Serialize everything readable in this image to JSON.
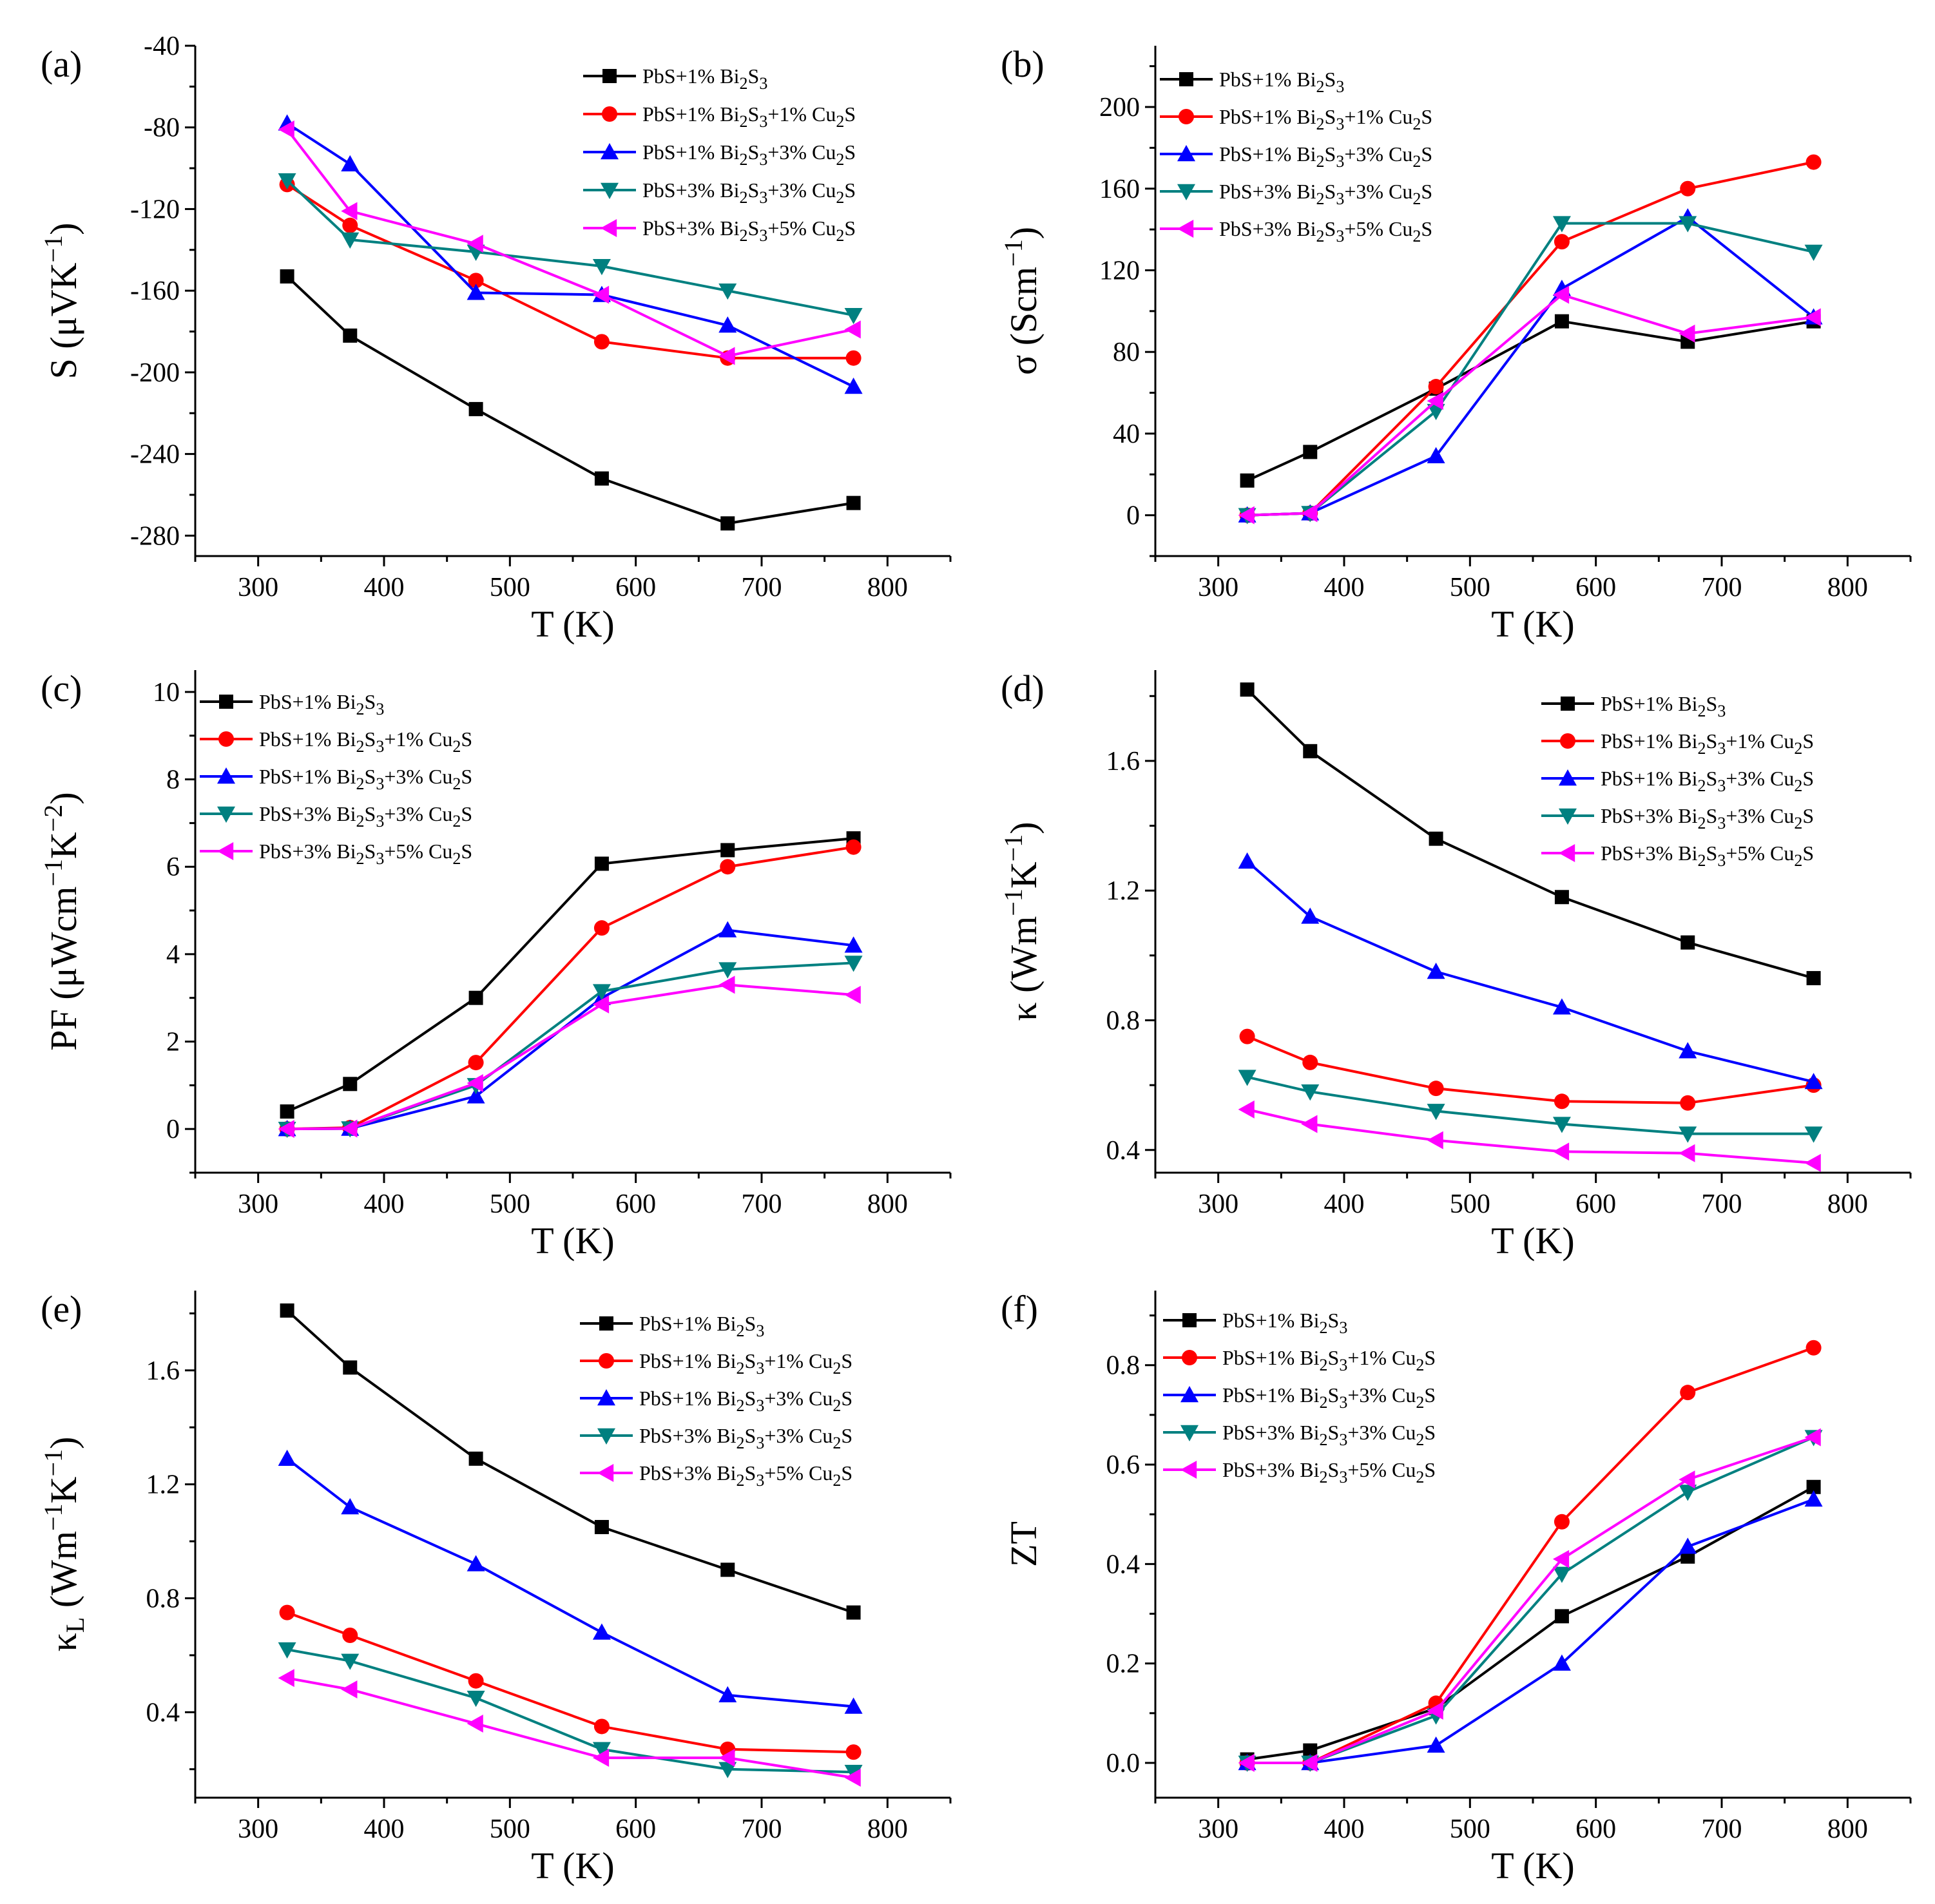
{
  "figure": {
    "description": "Six-panel thermoelectric property comparison"
  },
  "series_styles": [
    {
      "name": "PbS+1% Bi2S3",
      "label": {
        "a": "PbS+1% Bi",
        "b": "2",
        "c": "S",
        "d": "3",
        "e": "",
        "f": "",
        "g": ""
      },
      "color": "#000000",
      "marker": "square"
    },
    {
      "name": "PbS+1% Bi2S3+1% Cu2S",
      "label": {
        "a": "PbS+1% Bi",
        "b": "2",
        "c": "S",
        "d": "3",
        "e": "+1% Cu",
        "f": "2",
        "g": "S"
      },
      "color": "#ff0000",
      "marker": "circle"
    },
    {
      "name": "PbS+1% Bi2S3+3% Cu2S",
      "label": {
        "a": "PbS+1% Bi",
        "b": "2",
        "c": "S",
        "d": "3",
        "e": "+3% Cu",
        "f": "2",
        "g": "S"
      },
      "color": "#0000ff",
      "marker": "triangle-up"
    },
    {
      "name": "PbS+3% Bi2S3+3% Cu2S",
      "label": {
        "a": "PbS+3% Bi",
        "b": "2",
        "c": "S",
        "d": "3",
        "e": "+3% Cu",
        "f": "2",
        "g": "S"
      },
      "color": "#008080",
      "marker": "triangle-down"
    },
    {
      "name": "PbS+3% Bi2S3+5% Cu2S",
      "label": {
        "a": "PbS+3% Bi",
        "b": "2",
        "c": "S",
        "d": "3",
        "e": "+5% Cu",
        "f": "2",
        "g": "S"
      },
      "color": "#ff00ff",
      "marker": "triangle-left"
    }
  ],
  "chart_data": [
    {
      "id": "a",
      "panel_label": "(a)",
      "type": "line",
      "ylabel": {
        "main": "S (μVK",
        "sup": "−1",
        "end": ")"
      },
      "xlabel": "T (K)",
      "xlim": [
        250,
        850
      ],
      "xticks": [
        300,
        400,
        500,
        600,
        700,
        800
      ],
      "xtick_labels": [
        "300",
        "400",
        "500",
        "600",
        "700",
        "800"
      ],
      "ylim": [
        -290,
        -40
      ],
      "yticks": [
        -280,
        -240,
        -200,
        -160,
        -120,
        -80,
        -40
      ],
      "ytick_labels": [
        "-280",
        "-240",
        "-200",
        "-160",
        "-120",
        "-80",
        "-40"
      ],
      "legend_position": "top-right",
      "x": [
        323,
        373,
        473,
        573,
        673,
        773
      ],
      "series": [
        {
          "name": "PbS+1% Bi2S3",
          "values": [
            -153,
            -182,
            -218,
            -252,
            -274,
            -264
          ]
        },
        {
          "name": "PbS+1% Bi2S3+1% Cu2S",
          "values": [
            -108,
            -128,
            -155,
            -185,
            -193,
            -193
          ]
        },
        {
          "name": "PbS+1% Bi2S3+3% Cu2S",
          "values": [
            -78,
            -98,
            -161,
            -162,
            -177,
            -207
          ]
        },
        {
          "name": "PbS+3% Bi2S3+3% Cu2S",
          "values": [
            -106,
            -135,
            -141,
            -148,
            -160,
            -172
          ]
        },
        {
          "name": "PbS+3% Bi2S3+5% Cu2S",
          "values": [
            -81,
            -121,
            -137,
            -162,
            -192,
            -179
          ]
        }
      ]
    },
    {
      "id": "b",
      "panel_label": "(b)",
      "type": "line",
      "ylabel": {
        "main": "σ (Scm",
        "sup": "−1",
        "end": ")"
      },
      "xlabel": "T (K)",
      "xlim": [
        250,
        850
      ],
      "xticks": [
        300,
        400,
        500,
        600,
        700,
        800
      ],
      "xtick_labels": [
        "300",
        "400",
        "500",
        "600",
        "700",
        "800"
      ],
      "ylim": [
        -20,
        230
      ],
      "yticks": [
        0,
        40,
        80,
        120,
        160,
        200
      ],
      "ytick_labels": [
        "0",
        "40",
        "80",
        "120",
        "160",
        "200"
      ],
      "legend_position": "top-left",
      "x": [
        323,
        373,
        473,
        573,
        673,
        773
      ],
      "series": [
        {
          "name": "PbS+1% Bi2S3",
          "values": [
            17,
            31,
            62,
            95,
            85,
            95
          ]
        },
        {
          "name": "PbS+1% Bi2S3+1% Cu2S",
          "values": [
            0,
            1,
            63,
            134,
            160,
            173
          ]
        },
        {
          "name": "PbS+1% Bi2S3+3% Cu2S",
          "values": [
            0,
            1,
            29,
            111,
            146,
            97
          ]
        },
        {
          "name": "PbS+3% Bi2S3+3% Cu2S",
          "values": [
            0,
            1,
            51,
            143,
            143,
            129
          ]
        },
        {
          "name": "PbS+3% Bi2S3+5% Cu2S",
          "values": [
            0,
            1,
            56,
            108,
            89,
            97
          ]
        }
      ]
    },
    {
      "id": "c",
      "panel_label": "(c)",
      "type": "line",
      "ylabel": {
        "main": "PF (μWcm",
        "sup": "−1",
        "mid": "K",
        "sup2": "−2",
        "end": ")"
      },
      "xlabel": "T (K)",
      "xlim": [
        250,
        850
      ],
      "xticks": [
        300,
        400,
        500,
        600,
        700,
        800
      ],
      "xtick_labels": [
        "300",
        "400",
        "500",
        "600",
        "700",
        "800"
      ],
      "ylim": [
        -1,
        10.5
      ],
      "yticks": [
        0,
        2,
        4,
        6,
        8,
        10
      ],
      "ytick_labels": [
        "0",
        "2",
        "4",
        "6",
        "8",
        "10"
      ],
      "legend_position": "top-left",
      "x": [
        323,
        373,
        473,
        573,
        673,
        773
      ],
      "series": [
        {
          "name": "PbS+1% Bi2S3",
          "values": [
            0.4,
            1.03,
            3.0,
            6.07,
            6.38,
            6.65
          ]
        },
        {
          "name": "PbS+1% Bi2S3+1% Cu2S",
          "values": [
            0.0,
            0.03,
            1.52,
            4.6,
            6.0,
            6.45
          ]
        },
        {
          "name": "PbS+1% Bi2S3+3% Cu2S",
          "values": [
            0.0,
            0.01,
            0.75,
            3.0,
            4.55,
            4.2
          ]
        },
        {
          "name": "PbS+3% Bi2S3+3% Cu2S",
          "values": [
            0.0,
            0.01,
            1.0,
            3.15,
            3.65,
            3.8
          ]
        },
        {
          "name": "PbS+3% Bi2S3+5% Cu2S",
          "values": [
            0.0,
            0.01,
            1.05,
            2.85,
            3.3,
            3.07
          ]
        }
      ]
    },
    {
      "id": "d",
      "panel_label": "(d)",
      "type": "line",
      "ylabel": {
        "main": "κ (Wm",
        "sup": "−1",
        "mid": "K",
        "sup2": "−1",
        "end": ")"
      },
      "xlabel": "T (K)",
      "xlim": [
        250,
        850
      ],
      "xticks": [
        300,
        400,
        500,
        600,
        700,
        800
      ],
      "xtick_labels": [
        "300",
        "400",
        "500",
        "600",
        "700",
        "800"
      ],
      "ylim": [
        0.33,
        1.88
      ],
      "yticks": [
        0.4,
        0.8,
        1.2,
        1.6
      ],
      "ytick_labels": [
        "0.4",
        "0.8",
        "1.2",
        "1.6"
      ],
      "legend_position": "top-right",
      "x": [
        323,
        373,
        473,
        573,
        673,
        773
      ],
      "series": [
        {
          "name": "PbS+1% Bi2S3",
          "values": [
            1.82,
            1.63,
            1.36,
            1.18,
            1.04,
            0.93
          ]
        },
        {
          "name": "PbS+1% Bi2S3+1% Cu2S",
          "values": [
            0.75,
            0.67,
            0.59,
            0.55,
            0.545,
            0.6
          ]
        },
        {
          "name": "PbS+1% Bi2S3+3% Cu2S",
          "values": [
            1.29,
            1.12,
            0.95,
            0.84,
            0.705,
            0.61
          ]
        },
        {
          "name": "PbS+3% Bi2S3+3% Cu2S",
          "values": [
            0.625,
            0.58,
            0.52,
            0.48,
            0.45,
            0.45
          ]
        },
        {
          "name": "PbS+3% Bi2S3+5% Cu2S",
          "values": [
            0.525,
            0.48,
            0.43,
            0.395,
            0.39,
            0.36
          ]
        }
      ]
    },
    {
      "id": "e",
      "panel_label": "(e)",
      "type": "line",
      "ylabel": {
        "main": "κ",
        "sub": "L",
        "main2": " (Wm",
        "sup": "−1",
        "mid": "K",
        "sup2": "−1",
        "end": ")"
      },
      "xlabel": "T (K)",
      "xlim": [
        250,
        850
      ],
      "xticks": [
        300,
        400,
        500,
        600,
        700,
        800
      ],
      "xtick_labels": [
        "300",
        "400",
        "500",
        "600",
        "700",
        "800"
      ],
      "ylim": [
        0.1,
        1.88
      ],
      "yticks": [
        0.4,
        0.8,
        1.2,
        1.6
      ],
      "ytick_labels": [
        "0.4",
        "0.8",
        "1.2",
        "1.6"
      ],
      "legend_position": "top-right",
      "x": [
        323,
        373,
        473,
        573,
        673,
        773
      ],
      "series": [
        {
          "name": "PbS+1% Bi2S3",
          "values": [
            1.81,
            1.61,
            1.29,
            1.05,
            0.9,
            0.75
          ]
        },
        {
          "name": "PbS+1% Bi2S3+1% Cu2S",
          "values": [
            0.75,
            0.67,
            0.51,
            0.35,
            0.27,
            0.26
          ]
        },
        {
          "name": "PbS+1% Bi2S3+3% Cu2S",
          "values": [
            1.29,
            1.12,
            0.92,
            0.68,
            0.46,
            0.42
          ]
        },
        {
          "name": "PbS+3% Bi2S3+3% Cu2S",
          "values": [
            0.62,
            0.58,
            0.45,
            0.27,
            0.2,
            0.19
          ]
        },
        {
          "name": "PbS+3% Bi2S3+5% Cu2S",
          "values": [
            0.52,
            0.48,
            0.36,
            0.24,
            0.24,
            0.17
          ]
        }
      ]
    },
    {
      "id": "f",
      "panel_label": "(f)",
      "type": "line",
      "ylabel": {
        "main": "ZT"
      },
      "xlabel": "T (K)",
      "xlim": [
        250,
        850
      ],
      "xticks": [
        300,
        400,
        500,
        600,
        700,
        800
      ],
      "xtick_labels": [
        "300",
        "400",
        "500",
        "600",
        "700",
        "800"
      ],
      "ylim": [
        -0.07,
        0.95
      ],
      "yticks": [
        0.0,
        0.2,
        0.4,
        0.6,
        0.8
      ],
      "ytick_labels": [
        "0.0",
        "0.2",
        "0.4",
        "0.6",
        "0.8"
      ],
      "legend_position": "top-left",
      "x": [
        323,
        373,
        473,
        573,
        673,
        773
      ],
      "series": [
        {
          "name": "PbS+1% Bi2S3",
          "values": [
            0.007,
            0.025,
            0.11,
            0.295,
            0.415,
            0.555
          ]
        },
        {
          "name": "PbS+1% Bi2S3+1% Cu2S",
          "values": [
            0.0,
            0.0,
            0.12,
            0.485,
            0.745,
            0.835
          ]
        },
        {
          "name": "PbS+1% Bi2S3+3% Cu2S",
          "values": [
            0.0,
            0.0,
            0.035,
            0.2,
            0.435,
            0.53
          ]
        },
        {
          "name": "PbS+3% Bi2S3+3% Cu2S",
          "values": [
            0.0,
            0.0,
            0.095,
            0.38,
            0.545,
            0.655
          ]
        },
        {
          "name": "PbS+3% Bi2S3+5% Cu2S",
          "values": [
            0.0,
            0.0,
            0.105,
            0.41,
            0.57,
            0.655
          ]
        }
      ]
    }
  ]
}
